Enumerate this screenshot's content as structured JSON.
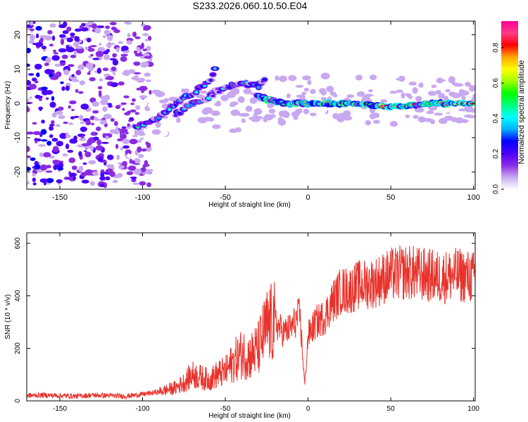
{
  "title": "S233.2026.060.10.50.E04",
  "chart_data": [
    {
      "type": "heatmap",
      "title": "S233.2026.060.10.50.E04",
      "xlabel": "Height of straight line (km)",
      "ylabel": "Frequency (Hz)",
      "xlim": [
        -170,
        101
      ],
      "ylim": [
        -25,
        24
      ],
      "xticks": [
        -150,
        -100,
        -50,
        0,
        50,
        100
      ],
      "yticks": [
        -20,
        -10,
        0,
        10,
        20
      ],
      "colorbar": {
        "label": "Normalized spectral amplitude",
        "ticks": [
          0.0,
          0.2,
          0.4,
          0.6,
          0.8
        ],
        "range": [
          0.0,
          0.95
        ],
        "colormap": [
          "#ffffff",
          "#c8a8f0",
          "#8a2be2",
          "#4b00ff",
          "#0000ff",
          "#00b0ff",
          "#00ffff",
          "#00ff7f",
          "#00ff00",
          "#a0ff00",
          "#ffff00",
          "#ffa500",
          "#ff0000",
          "#ff3b8a",
          "#ff0090"
        ]
      },
      "features": [
        {
          "name": "main trace",
          "points": [
            [
              -105,
              -7
            ],
            [
              -90,
              -4
            ],
            [
              -80,
              0
            ],
            [
              -70,
              3
            ],
            [
              -60,
              6
            ],
            [
              -55,
              11
            ]
          ],
          "peak": 0.45
        },
        {
          "name": "secondary trace",
          "points": [
            [
              -80,
              -3
            ],
            [
              -70,
              0
            ],
            [
              -60,
              2
            ],
            [
              -50,
              5
            ],
            [
              -40,
              6
            ],
            [
              -30,
              5
            ],
            [
              -25,
              7
            ]
          ],
          "peak": 0.4
        },
        {
          "name": "stable carrier",
          "points": [
            [
              -30,
              2
            ],
            [
              -15,
              0
            ],
            [
              0,
              0
            ],
            [
              25,
              0
            ],
            [
              50,
              -1
            ],
            [
              75,
              0
            ],
            [
              100,
              0
            ]
          ],
          "peak": 0.95
        },
        {
          "name": "noise region",
          "x_range": [
            -170,
            -95
          ],
          "y_range": [
            -24,
            24
          ],
          "peak": 0.25
        }
      ]
    },
    {
      "type": "line",
      "xlabel": "Height of straight line (km)",
      "ylabel": "SNR (10 * v/v)",
      "xlim": [
        -170,
        101
      ],
      "ylim": [
        0,
        640
      ],
      "xticks": [
        -150,
        -100,
        -50,
        0,
        50,
        100
      ],
      "yticks": [
        0,
        200,
        400,
        600
      ],
      "color": "#e8322b",
      "series": [
        {
          "name": "SNR",
          "x": [
            -170,
            -160,
            -150,
            -140,
            -130,
            -120,
            -110,
            -100,
            -90,
            -80,
            -75,
            -70,
            -65,
            -60,
            -55,
            -50,
            -45,
            -40,
            -35,
            -30,
            -25,
            -20,
            -15,
            -10,
            -5,
            -2,
            0,
            5,
            10,
            15,
            20,
            25,
            30,
            40,
            50,
            60,
            70,
            80,
            90,
            100
          ],
          "y": [
            20,
            22,
            20,
            18,
            22,
            20,
            18,
            25,
            35,
            50,
            70,
            100,
            90,
            80,
            100,
            110,
            150,
            180,
            170,
            200,
            280,
            300,
            260,
            280,
            330,
            60,
            250,
            300,
            320,
            380,
            420,
            420,
            440,
            450,
            480,
            490,
            480,
            470,
            480,
            470
          ]
        }
      ]
    }
  ]
}
